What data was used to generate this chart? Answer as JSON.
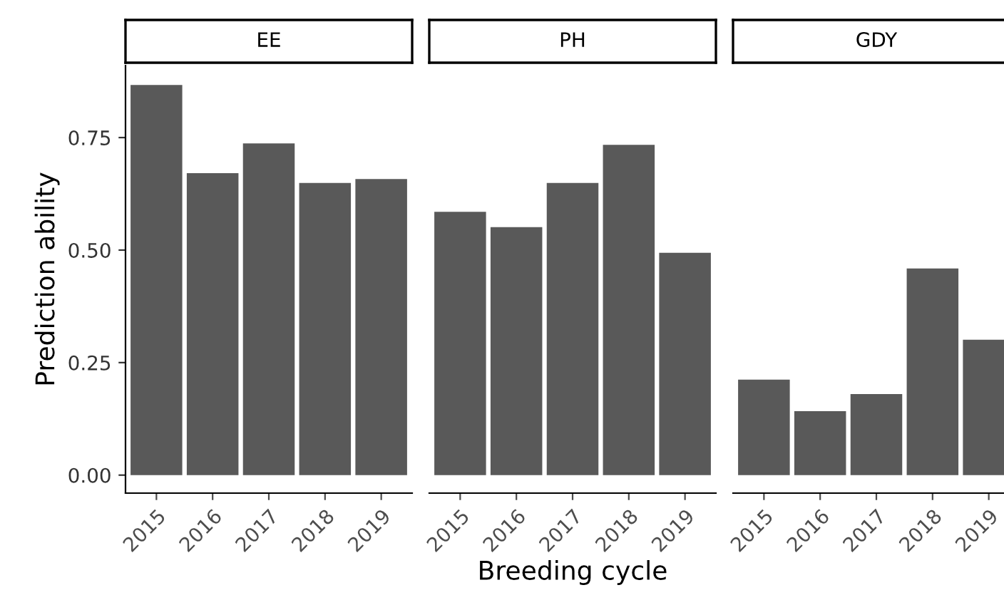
{
  "chart_data": [
    {
      "type": "bar",
      "title": "EE",
      "ylabel": "Prediction ability",
      "categories": [
        "2015",
        "2016",
        "2017",
        "2018",
        "2019"
      ],
      "values": [
        0.867,
        0.671,
        0.737,
        0.649,
        0.658
      ],
      "color": "#595959",
      "ylim": [
        -0.04,
        0.91
      ],
      "yticks": [
        {
          "value": 0,
          "label": "0.00"
        },
        {
          "value": 0.25,
          "label": "0.25"
        },
        {
          "value": 0.5,
          "label": "0.50"
        },
        {
          "value": 0.75,
          "label": "0.75"
        }
      ],
      "grid": false
    },
    {
      "type": "bar",
      "title": "PH",
      "xlabel": "Breeding cycle",
      "categories": [
        "2015",
        "2016",
        "2017",
        "2018",
        "2019"
      ],
      "values": [
        0.585,
        0.551,
        0.649,
        0.734,
        0.494
      ],
      "color": "#595959",
      "ylim": [
        -0.04,
        0.91
      ],
      "tick_labels": "x",
      "grid": false
    },
    {
      "type": "bar",
      "title": "GDY",
      "categories": [
        "2015",
        "2016",
        "2017",
        "2018",
        "2019"
      ],
      "values": [
        0.212,
        0.142,
        0.18,
        0.459,
        0.301
      ],
      "color": "#595959",
      "ylim": [
        -0.04,
        0.91
      ],
      "tick_labels": "x",
      "grid": false
    }
  ]
}
